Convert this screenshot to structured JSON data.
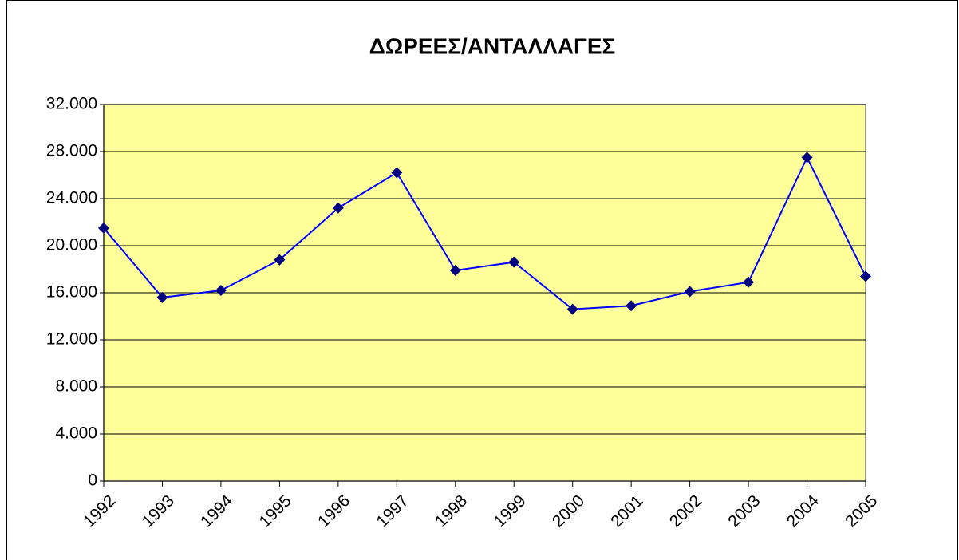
{
  "chart_data": {
    "type": "line",
    "title": "ΔΩΡΕΕΣ/ΑΝΤΑΛΛΑΓΕΣ",
    "categories": [
      "1992",
      "1993",
      "1994",
      "1995",
      "1996",
      "1997",
      "1998",
      "1999",
      "2000",
      "2001",
      "2002",
      "2003",
      "2004",
      "2005"
    ],
    "values": [
      21500,
      15600,
      16200,
      18800,
      23200,
      26200,
      17900,
      18600,
      14600,
      14900,
      16100,
      16900,
      27500,
      17400
    ],
    "color": "#0000ff",
    "marker_color": "#000080",
    "plot_background": "#ffff99",
    "ylim": [
      0,
      32000
    ],
    "yticks": [
      0,
      {
        "value": 4000,
        "label": "4.000"
      },
      {
        "value": 8000,
        "label": "8.000"
      },
      {
        "value": 12000,
        "label": "12.000"
      },
      {
        "value": 16000,
        "label": "16.000"
      },
      {
        "value": 20000,
        "label": "20.000"
      },
      {
        "value": 24000,
        "label": "24.000"
      },
      {
        "value": 28000,
        "label": "28.000"
      },
      {
        "value": 32000,
        "label": "32.000"
      }
    ],
    "grid": true
  }
}
